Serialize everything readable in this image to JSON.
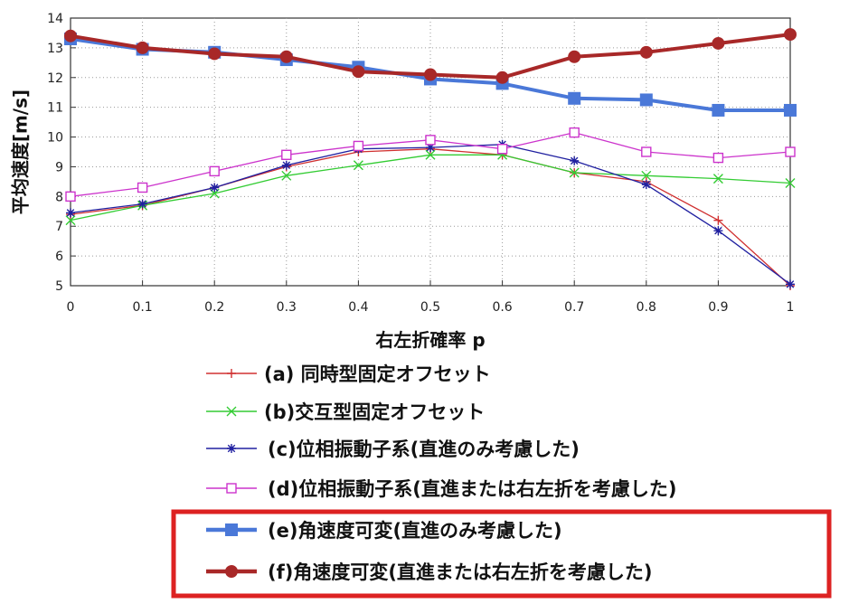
{
  "chart_data": {
    "type": "line",
    "xlabel": "右左折確率 p",
    "ylabel": "平均速度[m/s]",
    "xlim": [
      0,
      1
    ],
    "ylim": [
      5,
      14
    ],
    "x": [
      0,
      0.1,
      0.2,
      0.3,
      0.4,
      0.5,
      0.6,
      0.7,
      0.8,
      0.9,
      1
    ],
    "x_tick_labels": [
      "0",
      "0.1",
      "0.2",
      "0.3",
      "0.4",
      "0.5",
      "0.6",
      "0.7",
      "0.8",
      "0.9",
      "1"
    ],
    "y_ticks": [
      5,
      6,
      7,
      8,
      9,
      10,
      11,
      12,
      13,
      14
    ],
    "grid": true,
    "legend_position": "below",
    "series": [
      {
        "name": "(a) 同時型固定オフセット",
        "color": "#d03030",
        "marker": "plus",
        "values": [
          7.4,
          7.7,
          8.3,
          9.0,
          9.5,
          9.6,
          9.4,
          8.8,
          8.5,
          7.2,
          5.0
        ]
      },
      {
        "name": "(b)交互型固定オフセット",
        "color": "#33cc33",
        "marker": "x",
        "values": [
          7.2,
          7.7,
          8.1,
          8.7,
          9.05,
          9.4,
          9.4,
          8.8,
          8.7,
          8.6,
          8.45
        ]
      },
      {
        "name": "(c)位相振動子系(直進のみ考慮した)",
        "color": "#2020a0",
        "marker": "star",
        "values": [
          7.45,
          7.75,
          8.3,
          9.05,
          9.6,
          9.65,
          9.75,
          9.2,
          8.4,
          6.85,
          5.05
        ]
      },
      {
        "name": "(d)位相振動子系(直進または右左折を考慮した)",
        "color": "#cc33cc",
        "marker": "square-open",
        "values": [
          8.0,
          8.3,
          8.85,
          9.4,
          9.7,
          9.9,
          9.6,
          10.15,
          9.5,
          9.3,
          9.5
        ]
      },
      {
        "name": "(e)角速度可変(直進のみ考慮した)",
        "color": "#4a78d8",
        "marker": "square",
        "values": [
          13.3,
          12.95,
          12.85,
          12.6,
          12.35,
          11.95,
          11.8,
          11.3,
          11.25,
          10.9,
          10.9
        ]
      },
      {
        "name": "(f)角速度可変(直進または右左折を考慮した)",
        "color": "#a82828",
        "marker": "circle",
        "values": [
          13.4,
          13.0,
          12.8,
          12.7,
          12.2,
          12.1,
          12.0,
          12.7,
          12.85,
          13.15,
          13.45
        ]
      }
    ],
    "highlight_box_color": "#dd2222"
  }
}
